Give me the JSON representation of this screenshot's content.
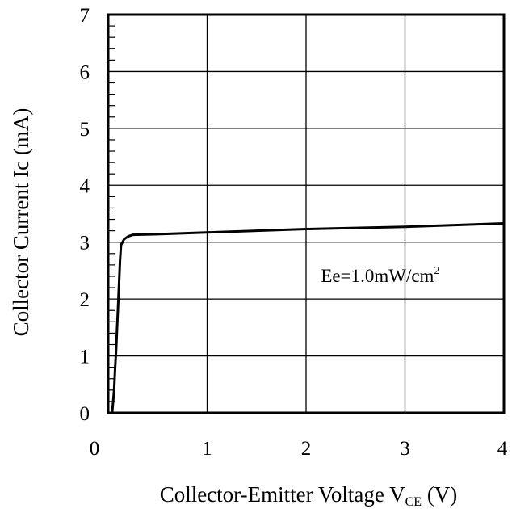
{
  "chart_data": {
    "type": "line",
    "xlabel": "Collector-Emitter Voltage V",
    "xlabel_sub": "CE",
    "xlabel_unit": " (V)",
    "ylabel": "Collector Current Ic (mA)",
    "xlim": [
      0,
      4
    ],
    "ylim": [
      0,
      7
    ],
    "x_ticks": [
      0,
      1,
      2,
      3,
      4
    ],
    "y_ticks": [
      0,
      1,
      2,
      3,
      4,
      5,
      6,
      7
    ],
    "x_tick_labels": [
      "0",
      "1",
      "2",
      "3",
      "4"
    ],
    "y_tick_labels": [
      "0",
      "1",
      "2",
      "3",
      "4",
      "5",
      "6",
      "7"
    ],
    "grid": true,
    "annotation": {
      "text": "Ee=1.0mW/cm",
      "superscript": "2",
      "x": 2.15,
      "y": 2.3
    },
    "series": [
      {
        "line_color": "#000000",
        "points": [
          [
            0.04,
            0.0
          ],
          [
            0.06,
            0.4
          ],
          [
            0.07,
            0.8
          ],
          [
            0.08,
            1.1
          ],
          [
            0.09,
            1.5
          ],
          [
            0.1,
            1.9
          ],
          [
            0.11,
            2.3
          ],
          [
            0.12,
            2.7
          ],
          [
            0.13,
            2.95
          ],
          [
            0.16,
            3.05
          ],
          [
            0.2,
            3.1
          ],
          [
            0.25,
            3.13
          ],
          [
            0.5,
            3.14
          ],
          [
            1.0,
            3.17
          ],
          [
            1.5,
            3.2
          ],
          [
            2.0,
            3.23
          ],
          [
            2.5,
            3.25
          ],
          [
            3.0,
            3.27
          ],
          [
            3.5,
            3.3
          ],
          [
            4.0,
            3.33
          ]
        ]
      }
    ]
  }
}
